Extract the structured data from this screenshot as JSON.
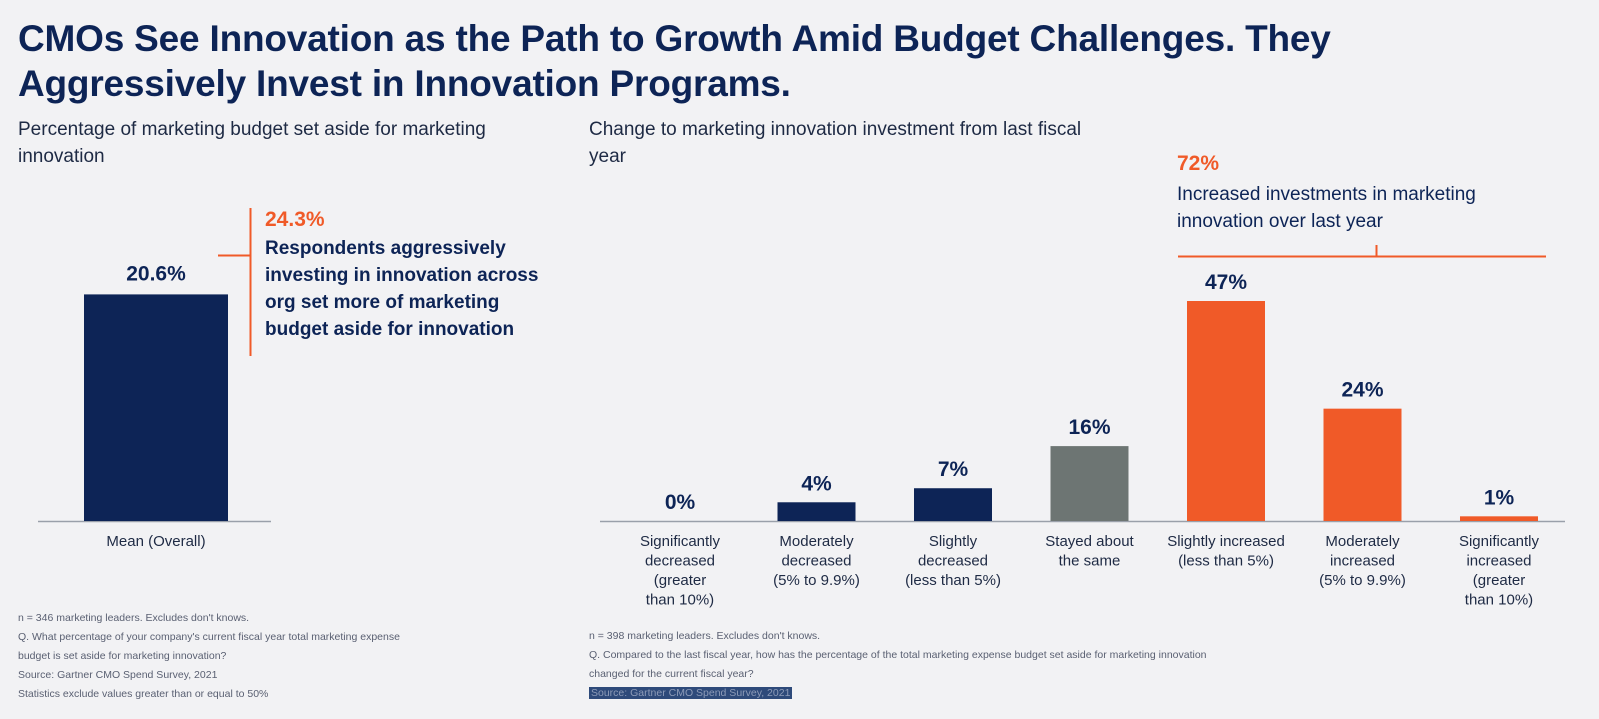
{
  "title": "CMOs See Innovation as the Path to Growth Amid Budget Challenges. They Aggressively Invest in Innovation Programs.",
  "colors": {
    "navy": "#0d2456",
    "orange": "#f05a28",
    "gray": "#6d7573"
  },
  "left_panel": {
    "subtitle": "Percentage of marketing budget set aside for marketing innovation",
    "callout_pct": "24.3%",
    "callout_text": "Respondents aggressively investing in innovation across org set more of marketing budget aside for innovation",
    "notes": [
      "n = 346 marketing leaders. Excludes don't knows.",
      "Q. What percentage of your company's current fiscal year total marketing expense",
      " budget is set aside for marketing innovation?",
      "Source: Gartner CMO Spend Survey, 2021",
      "Statistics exclude values greater than or equal to 50%"
    ]
  },
  "right_panel": {
    "subtitle": "Change to marketing innovation investment from last fiscal year",
    "callout_pct": "72%",
    "callout_text": "Increased investments in marketing innovation over last year",
    "notes": [
      "n = 398 marketing leaders. Excludes don't knows.",
      "Q. Compared to the last fiscal year, how has the percentage of the total marketing expense budget set aside for marketing innovation",
      "changed for the current fiscal year?"
    ],
    "source_note": "Source: Gartner CMO Spend Survey, 2021"
  },
  "chart_data": [
    {
      "type": "bar",
      "categories": [
        "Mean (Overall)"
      ],
      "values": [
        20.6
      ],
      "value_labels": [
        "20.6%"
      ],
      "colors": [
        "#0d2456"
      ],
      "title": "Percentage of marketing budget set aside for marketing innovation",
      "ylim": [
        0,
        30
      ],
      "grid": false
    },
    {
      "type": "bar",
      "categories": [
        [
          "Significantly",
          "decreased",
          "(greater",
          "than 10%)"
        ],
        [
          "Moderately",
          "decreased",
          "(5% to 9.9%)"
        ],
        [
          "Slightly",
          "decreased",
          "(less than 5%)"
        ],
        [
          "Stayed about",
          "the same"
        ],
        [
          "Slightly increased",
          "(less than 5%)"
        ],
        [
          "Moderately",
          "increased",
          "(5% to 9.9%)"
        ],
        [
          "Significantly",
          "increased",
          "(greater",
          "than 10%)"
        ]
      ],
      "values": [
        0,
        4,
        7,
        16,
        47,
        24,
        1
      ],
      "value_labels": [
        "0%",
        "4%",
        "7%",
        "16%",
        "47%",
        "24%",
        "1%"
      ],
      "colors": [
        "#0d2456",
        "#0d2456",
        "#0d2456",
        "#6d7573",
        "#f05a28",
        "#f05a28",
        "#f05a28"
      ],
      "title": "Change to marketing innovation investment from last fiscal year",
      "ylim": [
        0,
        47
      ],
      "grid": false
    }
  ]
}
